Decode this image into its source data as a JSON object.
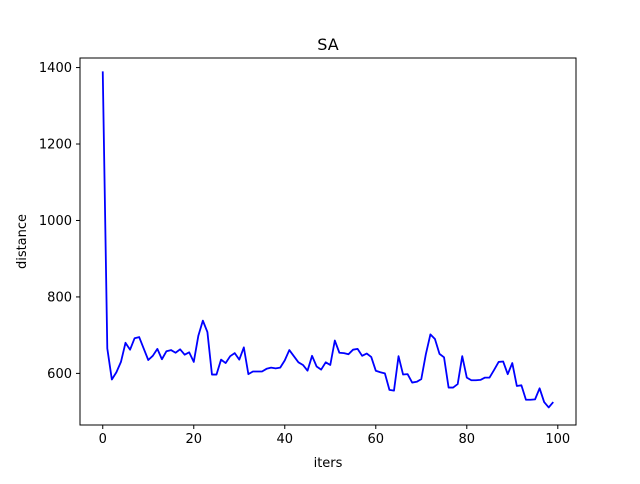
{
  "chart_data": {
    "type": "line",
    "title": "SA",
    "xlabel": "iters",
    "ylabel": "distance",
    "xlim": [
      -5,
      104
    ],
    "ylim": [
      465,
      1425
    ],
    "xticks": [
      0,
      20,
      40,
      60,
      80,
      100
    ],
    "xtick_labels": [
      "0",
      "20",
      "40",
      "60",
      "80",
      "100"
    ],
    "yticks": [
      600,
      800,
      1000,
      1200,
      1400
    ],
    "ytick_labels": [
      "600",
      "800",
      "1000",
      "1200",
      "1400"
    ],
    "grid": false,
    "line_color": "#0000ff",
    "series": [
      {
        "x": [
          0,
          1,
          2,
          3,
          4,
          5,
          6,
          7,
          8,
          9,
          10,
          11,
          12,
          13,
          14,
          15,
          16,
          17,
          18,
          19,
          20,
          21,
          22,
          23,
          24,
          25,
          26,
          27,
          28,
          29,
          30,
          31,
          32,
          33,
          34,
          35,
          36,
          37,
          38,
          39,
          40,
          41,
          42,
          43,
          44,
          45,
          46,
          47,
          48,
          49,
          50,
          51,
          52,
          53,
          54,
          55,
          56,
          57,
          58,
          59,
          60,
          61,
          62,
          63,
          64,
          65,
          66,
          67,
          68,
          69,
          70,
          71,
          72,
          73,
          74,
          75,
          76,
          77,
          78,
          79,
          80,
          81,
          82,
          83,
          84,
          85,
          86,
          87,
          88,
          89,
          90,
          91,
          92,
          93,
          94,
          95,
          96,
          97,
          98,
          99
        ],
        "values": [
          1390,
          665,
          584,
          603,
          630,
          680,
          662,
          692,
          695,
          665,
          635,
          646,
          664,
          637,
          658,
          661,
          654,
          663,
          649,
          655,
          630,
          698,
          738,
          708,
          597,
          597,
          636,
          627,
          645,
          653,
          636,
          668,
          598,
          605,
          605,
          605,
          612,
          615,
          613,
          615,
          634,
          661,
          645,
          629,
          622,
          607,
          646,
          618,
          610,
          629,
          622,
          686,
          654,
          653,
          650,
          662,
          664,
          646,
          652,
          643,
          607,
          603,
          600,
          557,
          555,
          645,
          597,
          598,
          576,
          578,
          585,
          650,
          702,
          690,
          651,
          642,
          563,
          563,
          572,
          645,
          589,
          582,
          582,
          583,
          589,
          589,
          609,
          630,
          631,
          598,
          627,
          567,
          569,
          531,
          531,
          532,
          561,
          525,
          511,
          525
        ]
      }
    ]
  }
}
